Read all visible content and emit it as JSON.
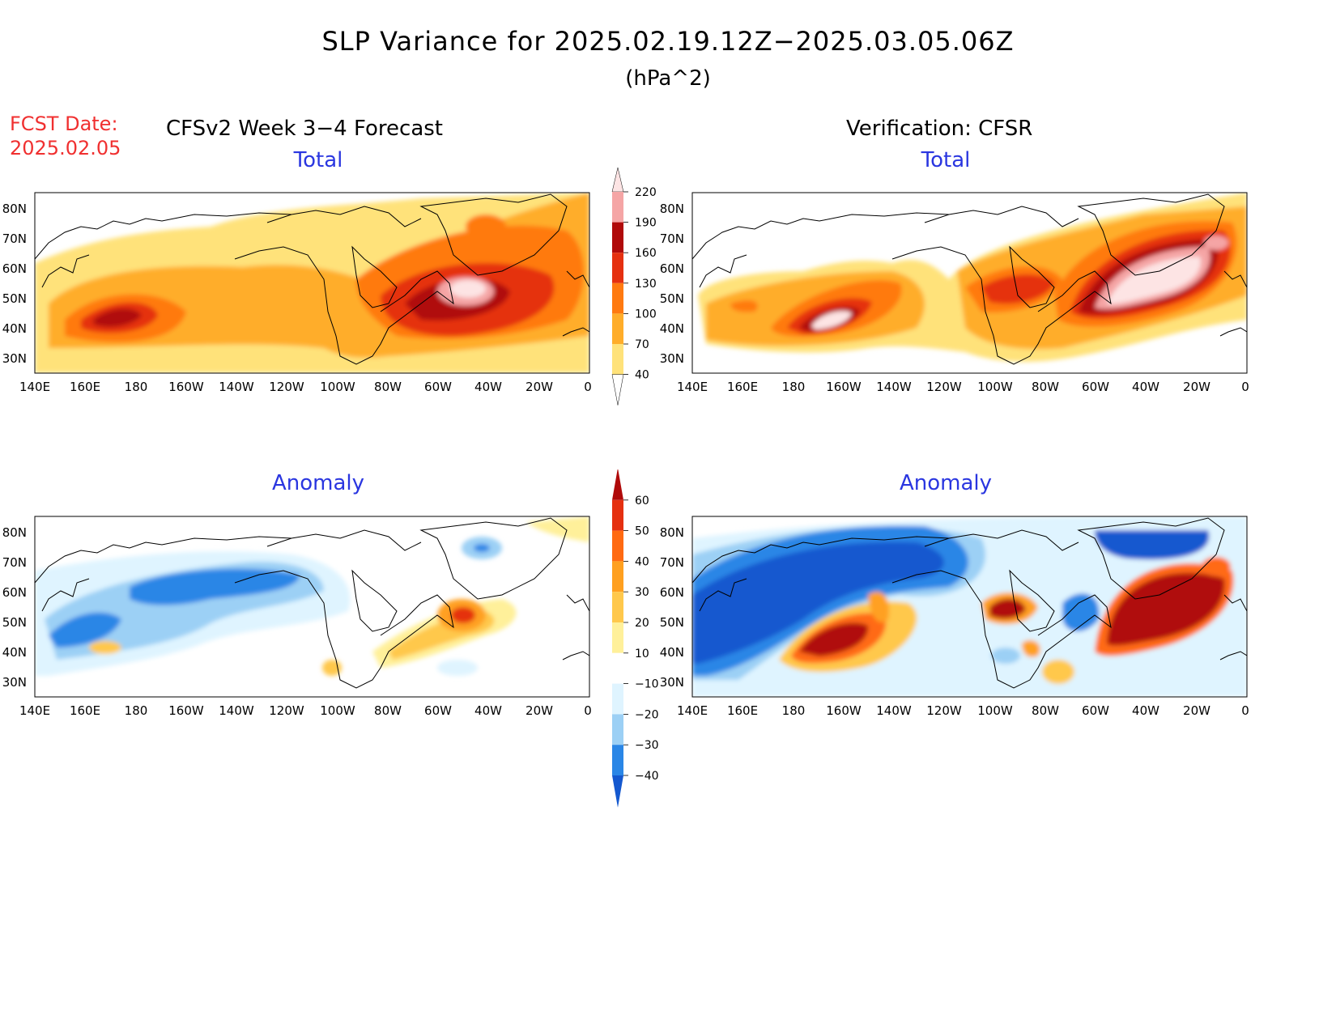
{
  "header": {
    "title": "SLP Variance for 2025.02.19.12Z−2025.03.05.06Z",
    "units": "(hPa^2)",
    "fcst_date_label": "FCST Date:",
    "fcst_date_value": "2025.02.05"
  },
  "columns": {
    "left": "CFSv2 Week 3−4 Forecast",
    "right": "Verification: CFSR"
  },
  "panels": {
    "fc_total": "Total",
    "vf_total": "Total",
    "fc_anom": "Anomaly",
    "vf_anom": "Anomaly"
  },
  "axes": {
    "lon_ticks": [
      "140E",
      "160E",
      "180",
      "160W",
      "140W",
      "120W",
      "100W",
      "80W",
      "60W",
      "40W",
      "20W",
      "0"
    ],
    "lat_ticks": [
      "80N",
      "70N",
      "60N",
      "50N",
      "40N",
      "30N"
    ],
    "lon_range": [
      "140E",
      "0"
    ],
    "lat_range": [
      25,
      85
    ]
  },
  "colorbars": {
    "total": {
      "levels": [
        "40",
        "70",
        "100",
        "130",
        "160",
        "190",
        "220"
      ],
      "colors": [
        "#ffe27a",
        "#ffad2a",
        "#ff7a10",
        "#e53010",
        "#b00a0a",
        "#f5a5a5",
        "#fde4e4"
      ]
    },
    "anomaly": {
      "levels": [
        "60",
        "50",
        "40",
        "30",
        "20",
        "10",
        "−10",
        "−20",
        "−30",
        "−40"
      ],
      "colors": [
        "#b00a0a",
        "#e53010",
        "#ff6a12",
        "#ffa020",
        "#ffc84c",
        "#fff09a",
        "#ffffff",
        "#dff4ff",
        "#9cd0f5",
        "#2a86e6",
        "#1458cf"
      ]
    }
  }
}
